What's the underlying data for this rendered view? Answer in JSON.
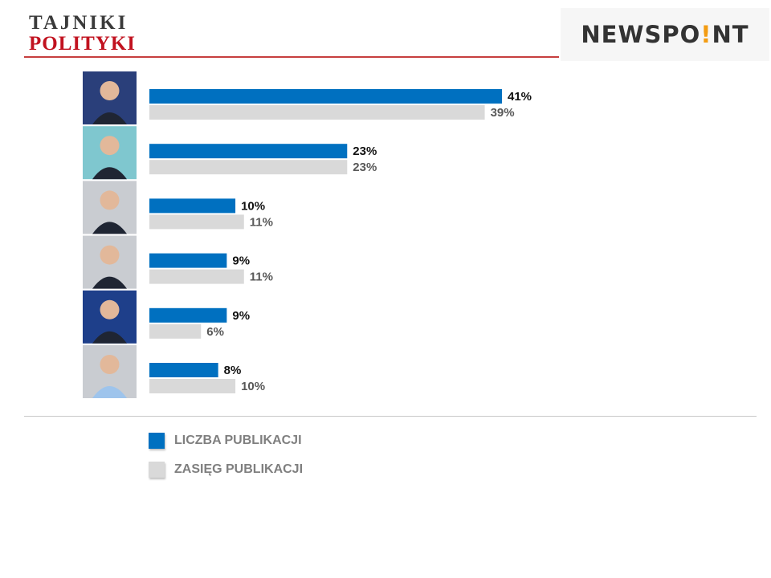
{
  "header": {
    "logo_left_line1": "TAJNIKI",
    "logo_left_line2": "POLITYKI",
    "logo_right_prefix": "NEWSPO",
    "logo_right_dot": "!",
    "logo_right_suffix": "NT"
  },
  "colors": {
    "series_primary": "#0070c0",
    "series_secondary": "#d9d9d9",
    "rule": "#c63f3f"
  },
  "chart_data": {
    "type": "bar",
    "orientation": "horizontal",
    "categories": [
      "",
      "",
      "",
      "",
      "",
      ""
    ],
    "portraits": [
      "candidate-1-portrait",
      "candidate-2-portrait",
      "candidate-3-portrait",
      "candidate-4-portrait",
      "candidate-5-portrait",
      "candidate-6-portrait"
    ],
    "series": [
      {
        "name": "LICZBA PUBLIKACJI",
        "color": "#0070c0",
        "values": [
          41,
          23,
          10,
          9,
          9,
          8
        ],
        "labels": [
          "41%",
          "23%",
          "10%",
          "9%",
          "9%",
          "8%"
        ]
      },
      {
        "name": "ZASIĘG PUBLIKACJI",
        "color": "#d9d9d9",
        "values": [
          39,
          23,
          11,
          11,
          6,
          10
        ],
        "labels": [
          "39%",
          "23%",
          "11%",
          "11%",
          "6%",
          "10%"
        ]
      }
    ],
    "value_unit": "%",
    "xlim": [
      0,
      41
    ],
    "grid": false,
    "legend_position": "bottom-left"
  },
  "legend": {
    "items": [
      {
        "label": "LICZBA PUBLIKACJI",
        "color": "#0070c0"
      },
      {
        "label": "ZASIĘG PUBLIKACJI",
        "color": "#d9d9d9"
      }
    ]
  }
}
